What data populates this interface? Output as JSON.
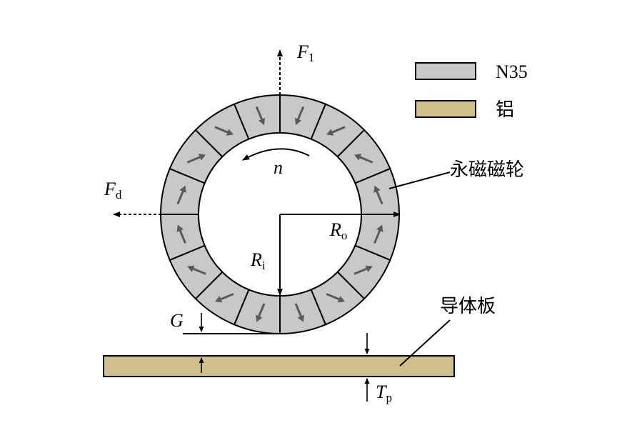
{
  "labels": {
    "F1_main": "F",
    "F1_sub": "1",
    "Fd_main": "F",
    "Fd_sub": "d",
    "n": "n",
    "Ro_main": "R",
    "Ro_sub": "o",
    "Ri_main": "R",
    "Ri_sub": "i",
    "G": "G",
    "Tp_main": "T",
    "Tp_sub": "p",
    "wheel": "永磁磁轮",
    "plate": "导体板"
  },
  "legend": [
    {
      "label": "N35",
      "color": "#c8c8c8"
    },
    {
      "label": "铝",
      "color": "#cfbf8d"
    }
  ],
  "colors": {
    "magnet_fill": "#c8c8c8",
    "plate_fill": "#cfbf8d",
    "magnet_arrow": "#5a5a5a",
    "stroke": "#000000"
  },
  "magnet_segments": 16
}
